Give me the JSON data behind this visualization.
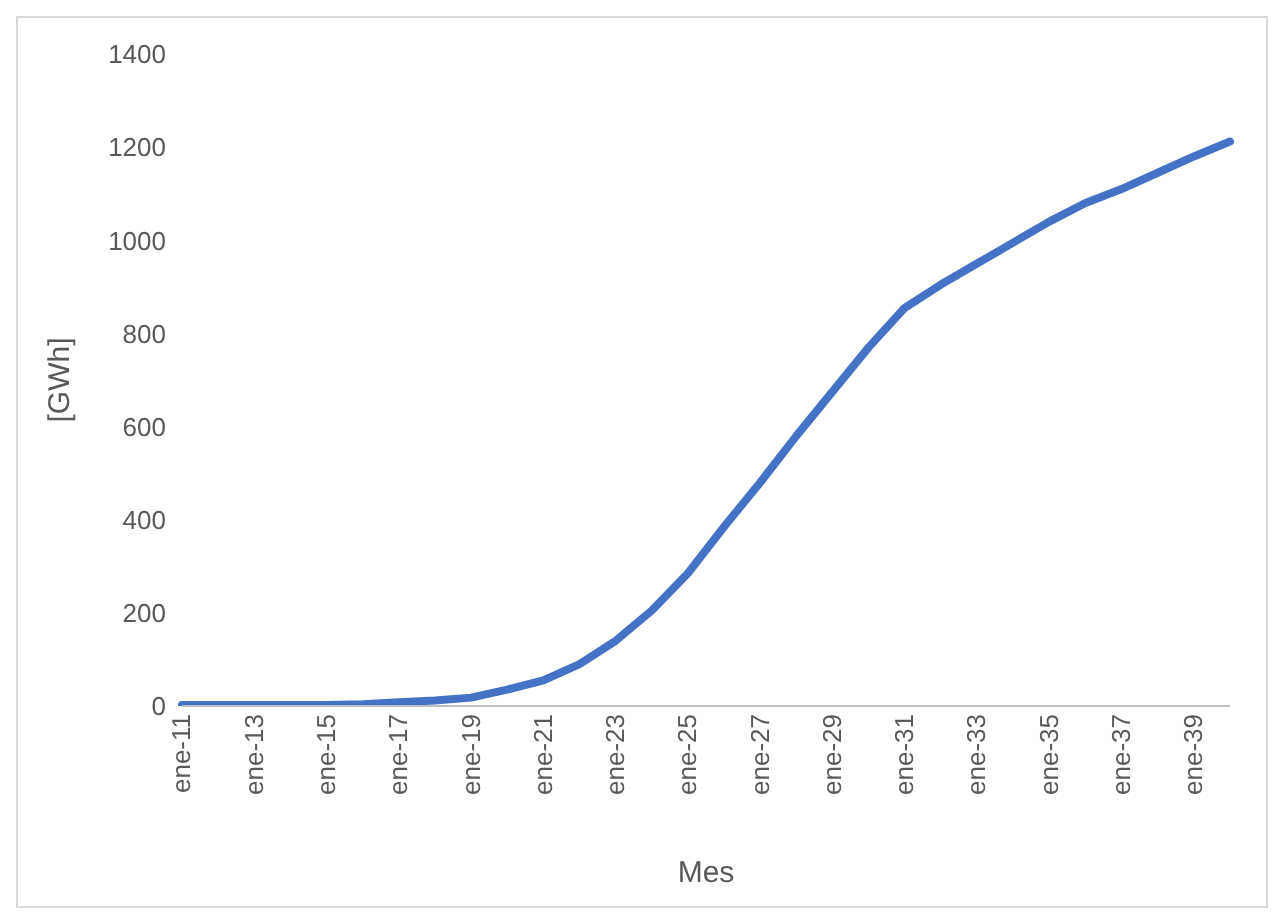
{
  "chart_data": {
    "type": "line",
    "xlabel": "Mes",
    "ylabel": "[GWh]",
    "categories": [
      "ene-11",
      null,
      "ene-13",
      null,
      "ene-15",
      null,
      "ene-17",
      null,
      "ene-19",
      null,
      "ene-21",
      null,
      "ene-23",
      null,
      "ene-25",
      null,
      "ene-27",
      null,
      "ene-29",
      null,
      "ene-31",
      null,
      "ene-33",
      null,
      "ene-35",
      null,
      "ene-37",
      null,
      "ene-39",
      null
    ],
    "series": [
      {
        "color": "#4472c4",
        "values": [
          2,
          2,
          2,
          2,
          2,
          4,
          8,
          12,
          18,
          35,
          55,
          90,
          140,
          205,
          285,
          385,
          480,
          580,
          675,
          770,
          855,
          905,
          950,
          995,
          1040,
          1080,
          1110,
          1145,
          1180,
          1212
        ]
      }
    ],
    "ylim": [
      0,
      1400
    ],
    "yticks": [
      0,
      200,
      400,
      600,
      800,
      1000,
      1200,
      1400
    ],
    "grid": false,
    "legend": false,
    "marker": "none"
  }
}
